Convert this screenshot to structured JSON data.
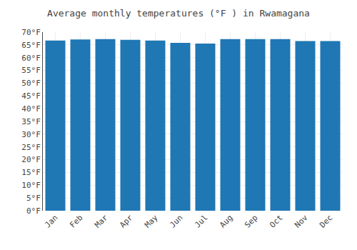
{
  "chart_data": {
    "type": "bar",
    "title": "Average monthly temperatures (°F ) in Rwamagana",
    "categories": [
      "Jan",
      "Feb",
      "Mar",
      "Apr",
      "May",
      "Jun",
      "Jul",
      "Aug",
      "Sep",
      "Oct",
      "Nov",
      "Dec"
    ],
    "values": [
      66.7,
      67.1,
      67.3,
      67.0,
      66.7,
      65.8,
      65.5,
      67.3,
      67.3,
      67.3,
      66.5,
      66.5
    ],
    "ylim": [
      0,
      70
    ],
    "yticks": [
      {
        "value": 0,
        "label": "0°F"
      },
      {
        "value": 5,
        "label": "5°F"
      },
      {
        "value": 10,
        "label": "10°F"
      },
      {
        "value": 15,
        "label": "15°F"
      },
      {
        "value": 20,
        "label": "20°F"
      },
      {
        "value": 25,
        "label": "25°F"
      },
      {
        "value": 30,
        "label": "30°F"
      },
      {
        "value": 35,
        "label": "35°F"
      },
      {
        "value": 40,
        "label": "40°F"
      },
      {
        "value": 45,
        "label": "45°F"
      },
      {
        "value": 50,
        "label": "50°F"
      },
      {
        "value": 55,
        "label": "55°F"
      },
      {
        "value": 60,
        "label": "60°F"
      },
      {
        "value": 65,
        "label": "65°F"
      },
      {
        "value": 70,
        "label": "70°F"
      }
    ],
    "grid": true
  }
}
